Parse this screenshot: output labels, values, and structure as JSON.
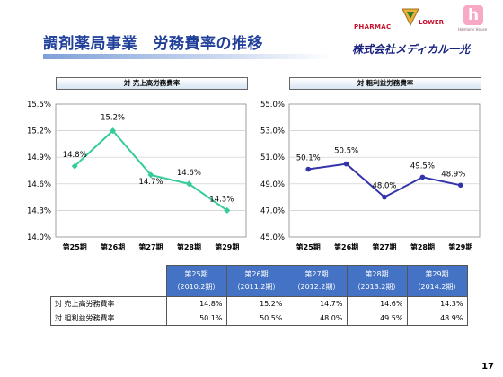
{
  "header": {
    "title": "調剤薬局事業　労務費率の推移",
    "logo_pharmac": "PHARMAC",
    "logo_lower": "LOWER",
    "logo_h": "h",
    "logo_harmony": "Harmony House",
    "company": "株式会社メディカル一光"
  },
  "page_number": "17",
  "colors": {
    "left_series": "#33cc99",
    "right_series": "#3333aa",
    "table_header": "#4472c4"
  },
  "chart_data": [
    {
      "type": "line",
      "title": "対 売上高労務費率",
      "categories": [
        "第25期",
        "第26期",
        "第27期",
        "第28期",
        "第29期"
      ],
      "series": [
        {
          "values": [
            14.8,
            15.2,
            14.7,
            14.6,
            14.3
          ]
        }
      ],
      "data_labels": [
        "14.8%",
        "15.2%",
        "14.7%",
        "14.6%",
        "14.3%"
      ],
      "ylim": [
        14.0,
        15.5
      ],
      "yticks": [
        "15.5%",
        "15.2%",
        "14.9%",
        "14.6%",
        "14.3%",
        "14.0%"
      ],
      "grid": true
    },
    {
      "type": "line",
      "title": "対 粗利益労務費率",
      "categories": [
        "第25期",
        "第26期",
        "第27期",
        "第28期",
        "第29期"
      ],
      "series": [
        {
          "values": [
            50.1,
            50.5,
            48.0,
            49.5,
            48.9
          ]
        }
      ],
      "data_labels": [
        "50.1%",
        "50.5%",
        "48.0%",
        "49.5%",
        "48.9%"
      ],
      "ylim": [
        45.0,
        55.0
      ],
      "yticks": [
        "55.0%",
        "53.0%",
        "51.0%",
        "49.0%",
        "47.0%",
        "45.0%"
      ],
      "grid": true
    }
  ],
  "table": {
    "headers": [
      {
        "period": "第25期",
        "date": "（2010.2期）"
      },
      {
        "period": "第26期",
        "date": "（2011.2期）"
      },
      {
        "period": "第27期",
        "date": "（2012.2期）"
      },
      {
        "period": "第28期",
        "date": "（2013.2期）"
      },
      {
        "period": "第29期",
        "date": "（2014.2期）"
      }
    ],
    "rows": [
      {
        "label": "対 売上高労務費率",
        "values": [
          "14.8%",
          "15.2%",
          "14.7%",
          "14.6%",
          "14.3%"
        ]
      },
      {
        "label": "対 粗利益労務費率",
        "values": [
          "50.1%",
          "50.5%",
          "48.0%",
          "49.5%",
          "48.9%"
        ]
      }
    ]
  }
}
